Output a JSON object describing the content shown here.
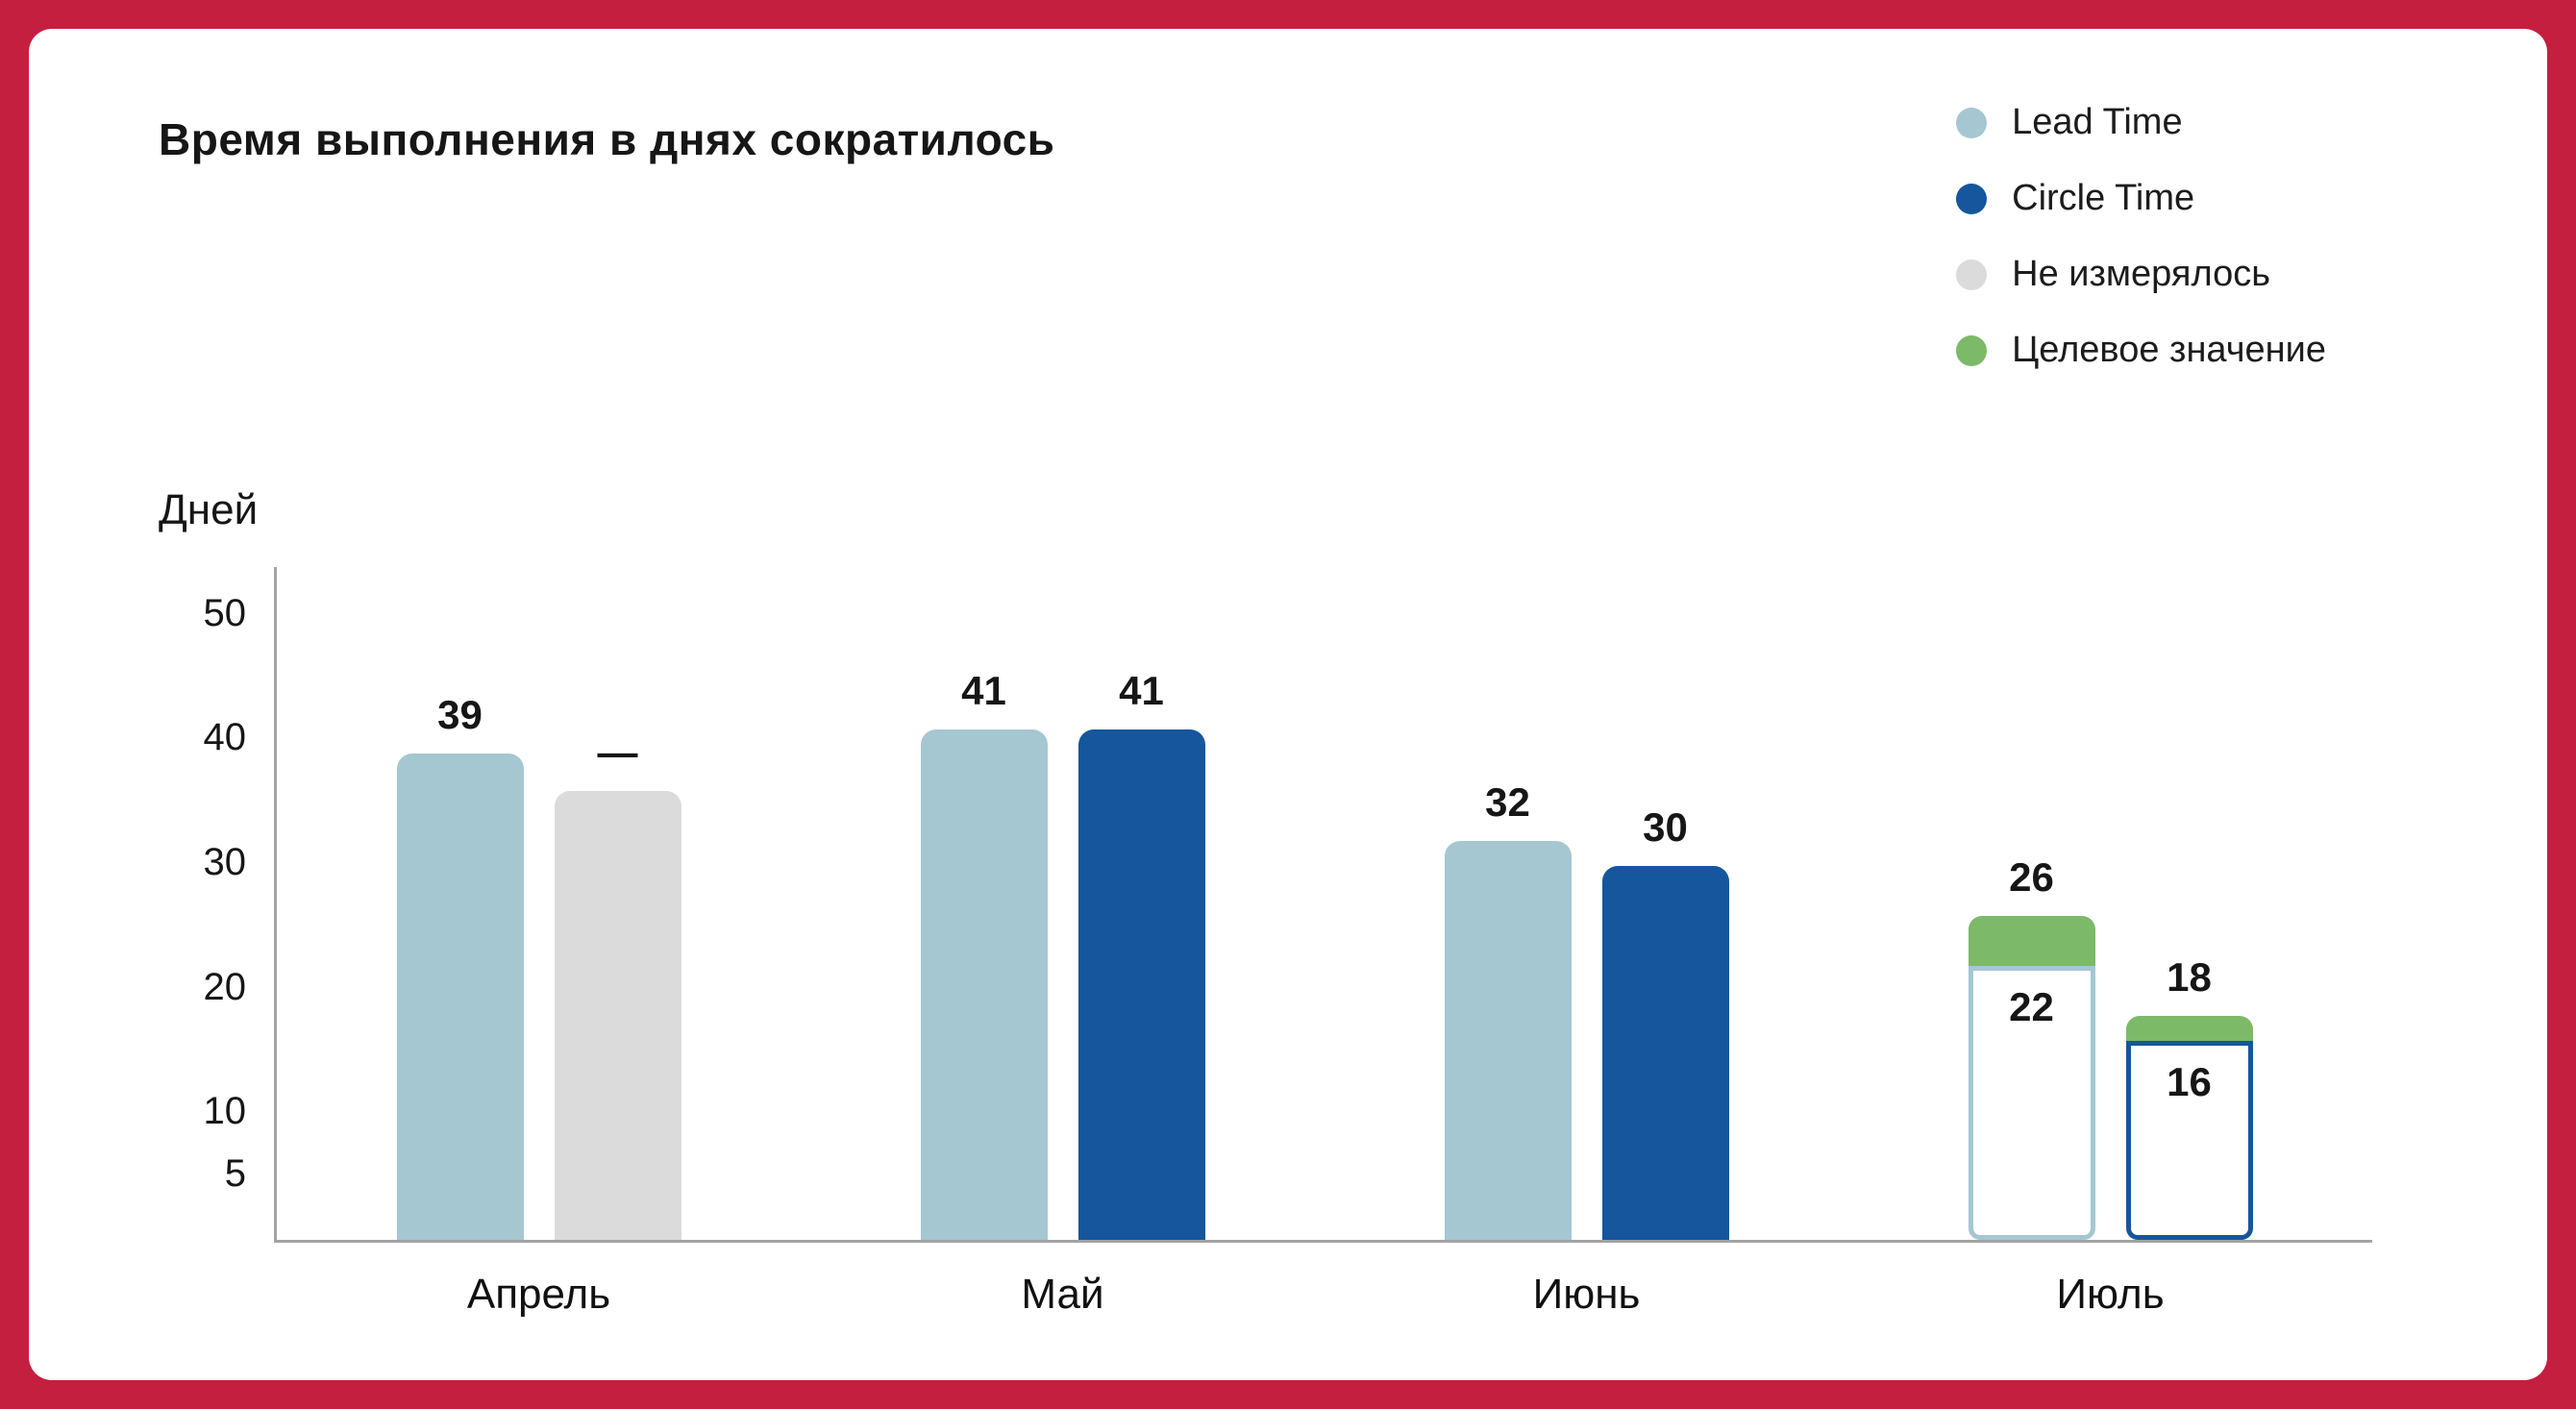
{
  "frame": {
    "background": "#C51F3F",
    "card_background": "#FFFFFF"
  },
  "title": "Время выполнения в днях сократилось",
  "legend": [
    {
      "label": "Lead Time",
      "color": "#A4C7D2"
    },
    {
      "label": "Circle Time",
      "color": "#15569C"
    },
    {
      "label": "Не измерялось",
      "color": "#DBDBDB"
    },
    {
      "label": "Целевое значение",
      "color": "#7CB968"
    }
  ],
  "chart_data": {
    "type": "bar",
    "title": "Время выполнения в днях сократилось",
    "xlabel": "",
    "ylabel": "Дней",
    "ylim": [
      0,
      50
    ],
    "y_ticks": [
      50,
      40,
      30,
      20,
      10,
      5
    ],
    "grid": false,
    "legend_position": "top-right",
    "categories": [
      "Апрель",
      "Май",
      "Июнь",
      "Июль"
    ],
    "groups": [
      {
        "category": "Апрель",
        "bars": [
          {
            "series": "Lead Time",
            "value": 39,
            "label": "39",
            "style": "filled",
            "color": "#A4C7D2"
          },
          {
            "series": "Не измерялось",
            "value": 36,
            "label": "—",
            "style": "filled",
            "color": "#DBDBDB"
          }
        ]
      },
      {
        "category": "Май",
        "bars": [
          {
            "series": "Lead Time",
            "value": 41,
            "label": "41",
            "style": "filled",
            "color": "#A4C7D2"
          },
          {
            "series": "Circle Time",
            "value": 41,
            "label": "41",
            "style": "filled",
            "color": "#15569C"
          }
        ]
      },
      {
        "category": "Июнь",
        "bars": [
          {
            "series": "Lead Time",
            "value": 32,
            "label": "32",
            "style": "filled",
            "color": "#A4C7D2"
          },
          {
            "series": "Circle Time",
            "value": 30,
            "label": "30",
            "style": "filled",
            "color": "#15569C"
          }
        ]
      },
      {
        "category": "Июль",
        "bars": [
          {
            "series": "Lead Time",
            "value": 22,
            "label": "22",
            "style": "outlined",
            "color": "#A4C7D2",
            "target": 26,
            "target_label": "26",
            "target_color": "#7CB968"
          },
          {
            "series": "Circle Time",
            "value": 16,
            "label": "16",
            "style": "outlined",
            "color": "#15569C",
            "target": 18,
            "target_label": "18",
            "target_color": "#7CB968"
          }
        ]
      }
    ]
  }
}
